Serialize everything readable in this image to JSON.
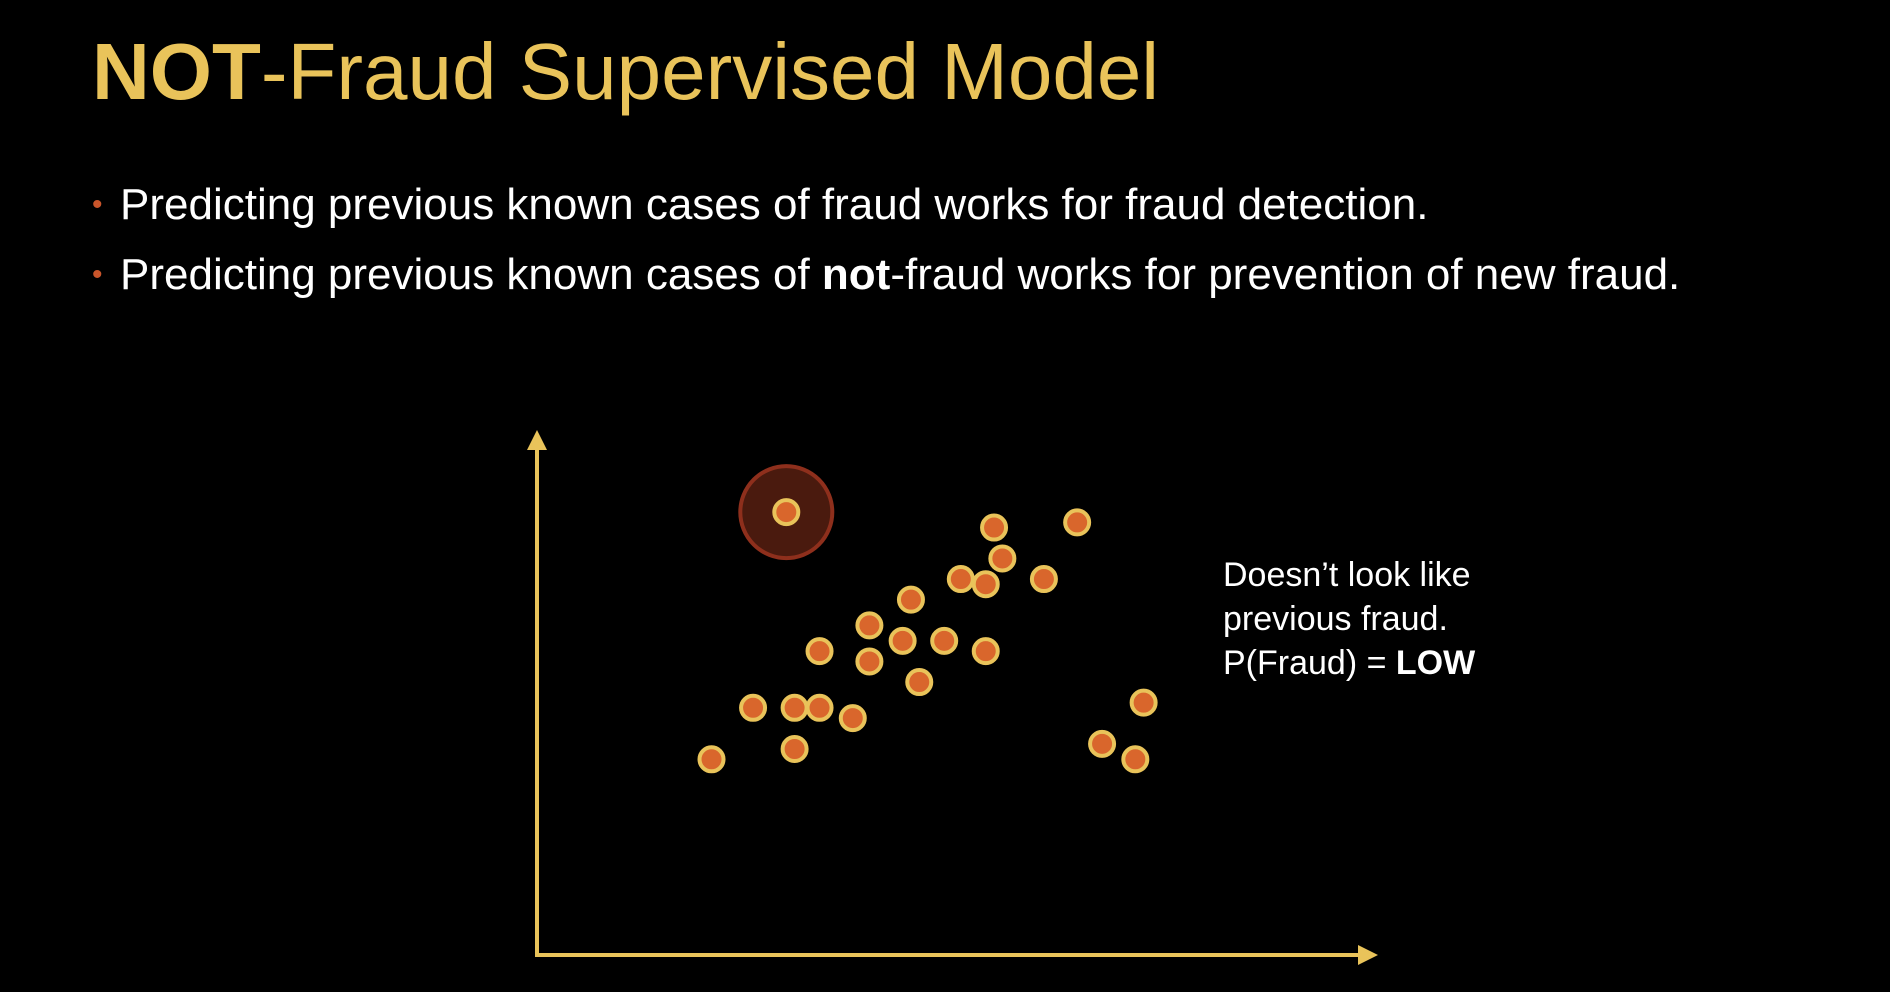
{
  "title": {
    "strong": "NOT",
    "rest": "-Fraud Supervised Model"
  },
  "bullets": [
    {
      "before": "Predicting previous known cases of fraud works for fraud detection.",
      "strong": "",
      "after": ""
    },
    {
      "before": "Predicting previous known cases of ",
      "strong": "not",
      "after": "-fraud works for prevention of new fraud."
    }
  ],
  "annotation": {
    "line1": "Doesn’t look like",
    "line2": "previous fraud.",
    "line3_prefix": "P(Fraud) = ",
    "line3_value": "LOW"
  },
  "colors": {
    "title": "#E9C35A",
    "text": "#FFFFFF",
    "bullet": "#C9552B",
    "axis": "#E9C35A",
    "point_fill": "#D9662C",
    "point_stroke": "#E9C35A",
    "highlight_fill": "#4A1A0E",
    "highlight_stroke": "#8E2F1C",
    "background": "#000000"
  },
  "chart_data": {
    "type": "scatter",
    "title": "",
    "xlabel": "",
    "ylabel": "",
    "axis_ticks": false,
    "grid": false,
    "xlim": [
      0,
      100
    ],
    "ylim": [
      0,
      100
    ],
    "series": [
      {
        "role": "previous_not_fraud",
        "points": [
          [
            21,
            38
          ],
          [
            26,
            48
          ],
          [
            31,
            48
          ],
          [
            31,
            40
          ],
          [
            34,
            48
          ],
          [
            34,
            59
          ],
          [
            38,
            46
          ],
          [
            40,
            64
          ],
          [
            40,
            57
          ],
          [
            44,
            61
          ],
          [
            45,
            69
          ],
          [
            46,
            53
          ],
          [
            49,
            61
          ],
          [
            51,
            73
          ],
          [
            54,
            59
          ],
          [
            54,
            72
          ],
          [
            55,
            83
          ],
          [
            56,
            77
          ],
          [
            61,
            73
          ],
          [
            65,
            84
          ],
          [
            68,
            41
          ],
          [
            72,
            38
          ],
          [
            73,
            49
          ]
        ]
      },
      {
        "role": "new_case",
        "highlighted": true,
        "points": [
          [
            30,
            86
          ]
        ]
      }
    ]
  }
}
